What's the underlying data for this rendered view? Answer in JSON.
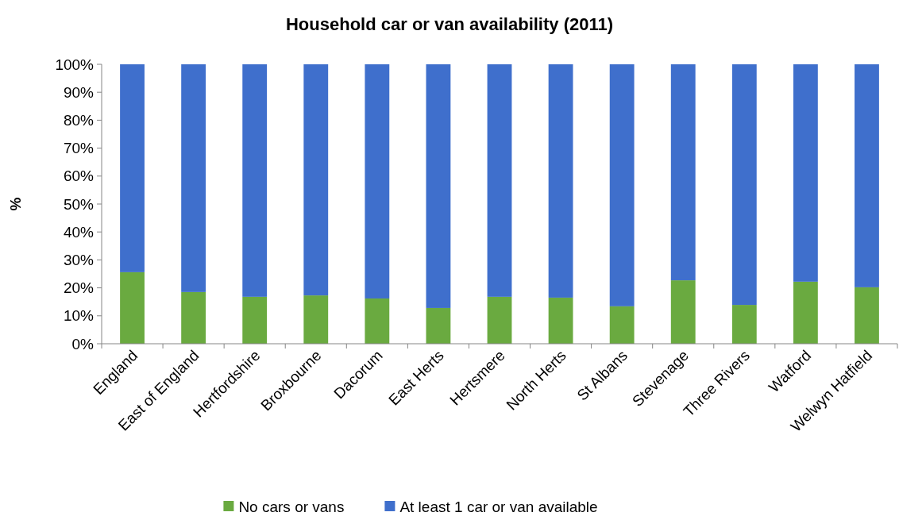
{
  "chart_data": {
    "type": "bar",
    "title": "Household car or van availability (2011)",
    "ylabel": "%",
    "stacked": true,
    "legend": "bottom",
    "grid": false,
    "categories": [
      "England",
      "East of England",
      "Hertfordshire",
      "Broxbourne",
      "Dacorum",
      "East Herts",
      "Hertsmere",
      "North Herts",
      "St Albans",
      "Stevenage",
      "Three Rivers",
      "Watford",
      "Welwyn Hatfield"
    ],
    "series": [
      {
        "name": "No cars or vans",
        "color": "#6aaa40",
        "values": [
          25.6,
          18.5,
          16.8,
          17.3,
          16.2,
          12.8,
          16.8,
          16.5,
          13.4,
          22.7,
          13.9,
          22.2,
          20.2
        ]
      },
      {
        "name": "At least 1 car or van available",
        "color": "#3f6fcc",
        "values": [
          74.4,
          81.5,
          83.2,
          82.7,
          83.8,
          87.2,
          83.2,
          83.5,
          86.6,
          77.3,
          86.1,
          77.8,
          79.8
        ]
      }
    ],
    "ylim": [
      0,
      100
    ],
    "yticks": [
      {
        "value": 0,
        "label": "0%"
      },
      {
        "value": 10,
        "label": "10%"
      },
      {
        "value": 20,
        "label": "20%"
      },
      {
        "value": 30,
        "label": "30%"
      },
      {
        "value": 40,
        "label": "40%"
      },
      {
        "value": 50,
        "label": "50%"
      },
      {
        "value": 60,
        "label": "60%"
      },
      {
        "value": 70,
        "label": "70%"
      },
      {
        "value": 80,
        "label": "80%"
      },
      {
        "value": 90,
        "label": "90%"
      },
      {
        "value": 100,
        "label": "100%"
      }
    ]
  }
}
